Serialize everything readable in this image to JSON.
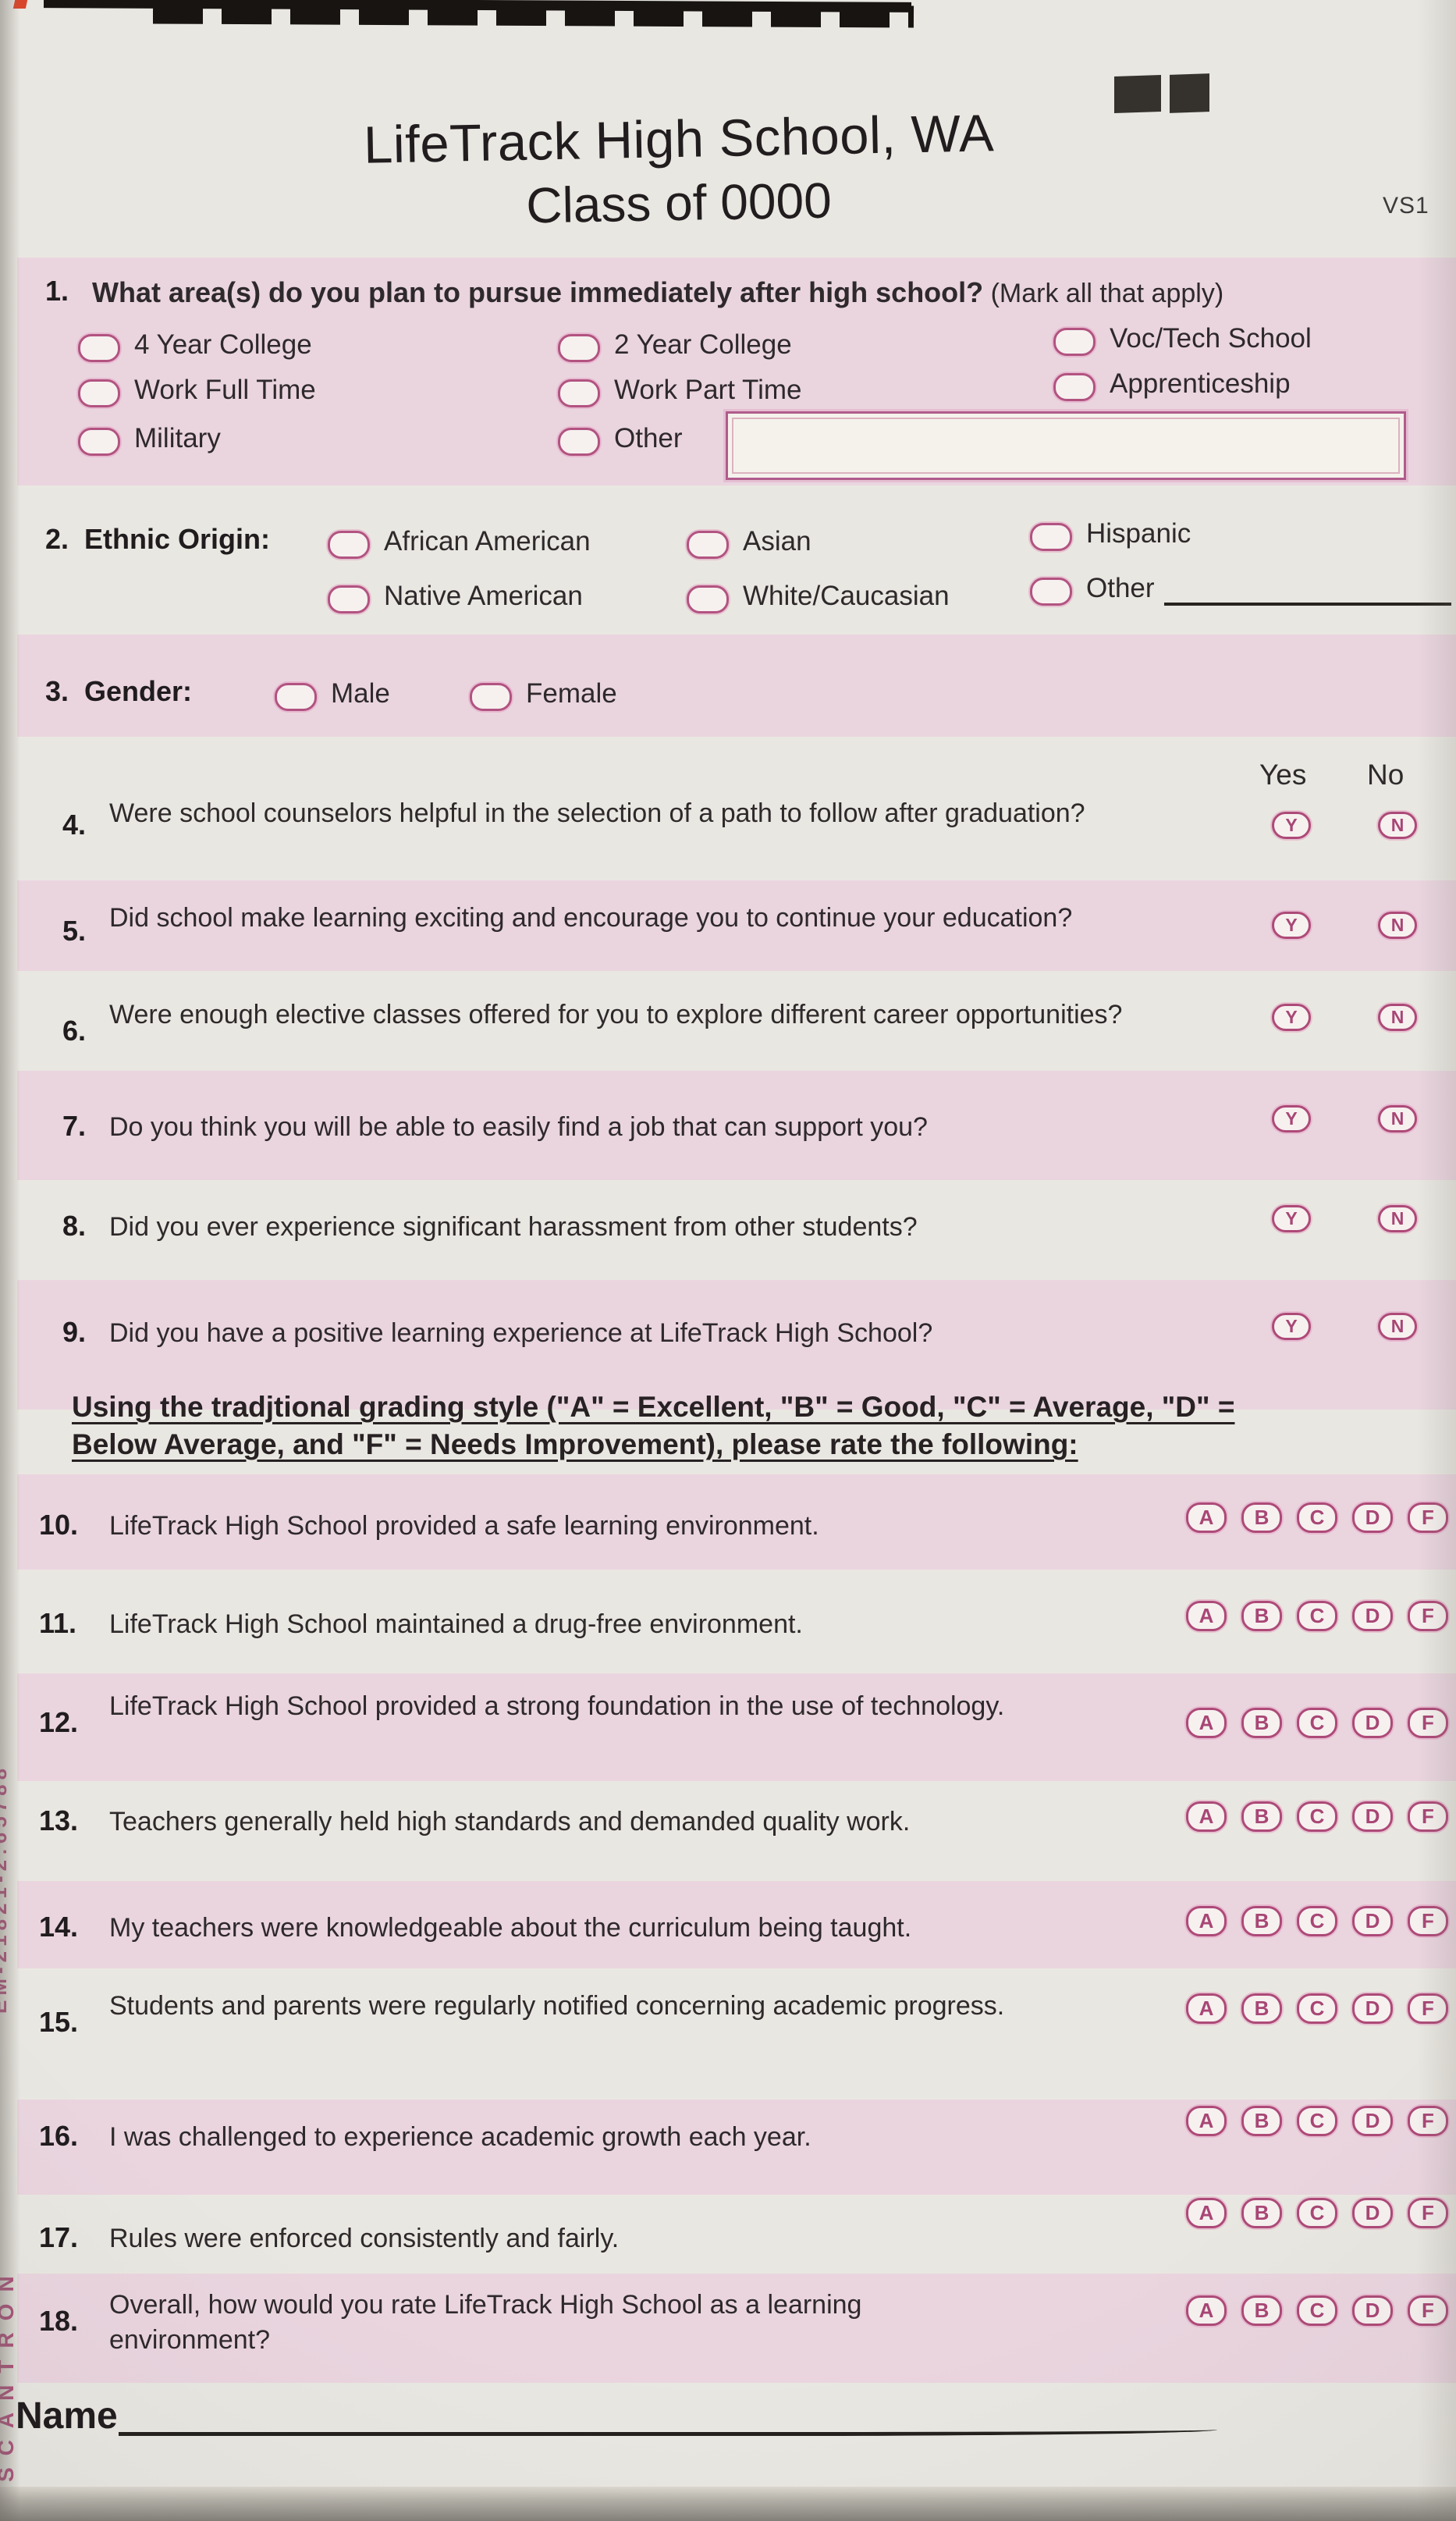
{
  "page": {
    "school_title": "LifeTrack High School, WA",
    "class_title": "Class of 0000",
    "version_code": "VS1",
    "yes_header": "Yes",
    "no_header": "No",
    "name_label": "Name",
    "edge_print_brand": "SCANTRON",
    "edge_print_code": "EM-21821-2:65788",
    "colors": {
      "band_pink": "#ead5df",
      "paper": "#e9e7e1",
      "bubble_ring": "#ad4a78",
      "ink": "#2e292b"
    }
  },
  "options": {
    "yn": [
      "Y",
      "N"
    ],
    "grades": [
      "A",
      "B",
      "C",
      "D",
      "F"
    ]
  },
  "instructions": "Using the tradjtional grading style (\"A\" = Excellent, \"B\" = Good, \"C\" = Average, \"D\" = Below Average, and \"F\" = Needs Improvement), please rate the following:",
  "q1": {
    "number": "1.",
    "text": "What area(s) do you plan to pursue immediately after high school?",
    "suffix": " (Mark all that apply)",
    "options": [
      "4 Year College",
      "2 Year College",
      "Voc/Tech School",
      "Work Full Time",
      "Work Part Time",
      "Apprenticeship",
      "Military",
      "Other"
    ],
    "other_value": ""
  },
  "q2": {
    "number": "2.",
    "label": "Ethnic Origin:",
    "options": [
      "African American",
      "Asian",
      "Hispanic",
      "Native American",
      "White/Caucasian",
      "Other"
    ],
    "other_value": ""
  },
  "q3": {
    "number": "3.",
    "label": "Gender:",
    "options": [
      "Male",
      "Female"
    ]
  },
  "yn_questions": [
    {
      "number": "4.",
      "text": "Were school counselors helpful in the selection of a path to follow after graduation?"
    },
    {
      "number": "5.",
      "text": "Did school make learning exciting and encourage you to continue your education?"
    },
    {
      "number": "6.",
      "text": "Were enough elective classes offered for you to explore different career opportunities?"
    },
    {
      "number": "7.",
      "text": "Do you think you will be able to easily find a job that can support you?"
    },
    {
      "number": "8.",
      "text": "Did you ever experience significant harassment from other students?"
    },
    {
      "number": "9.",
      "text": "Did you have a positive learning experience at LifeTrack High School?"
    }
  ],
  "grade_questions": [
    {
      "number": "10.",
      "text": "LifeTrack High School provided a safe learning environment."
    },
    {
      "number": "11.",
      "text": "LifeTrack High School maintained a drug-free environment."
    },
    {
      "number": "12.",
      "text": "LifeTrack High School provided a strong foundation in the use of technology."
    },
    {
      "number": "13.",
      "text": "Teachers generally held high standards and demanded quality work."
    },
    {
      "number": "14.",
      "text": "My teachers were knowledgeable about the curriculum being taught."
    },
    {
      "number": "15.",
      "text": "Students and parents were regularly notified concerning academic progress."
    },
    {
      "number": "16.",
      "text": "I was challenged to experience academic growth each year."
    },
    {
      "number": "17.",
      "text": "Rules were enforced consistently and fairly."
    },
    {
      "number": "18.",
      "text": "Overall, how would you rate LifeTrack High School as a learning environment?"
    }
  ]
}
